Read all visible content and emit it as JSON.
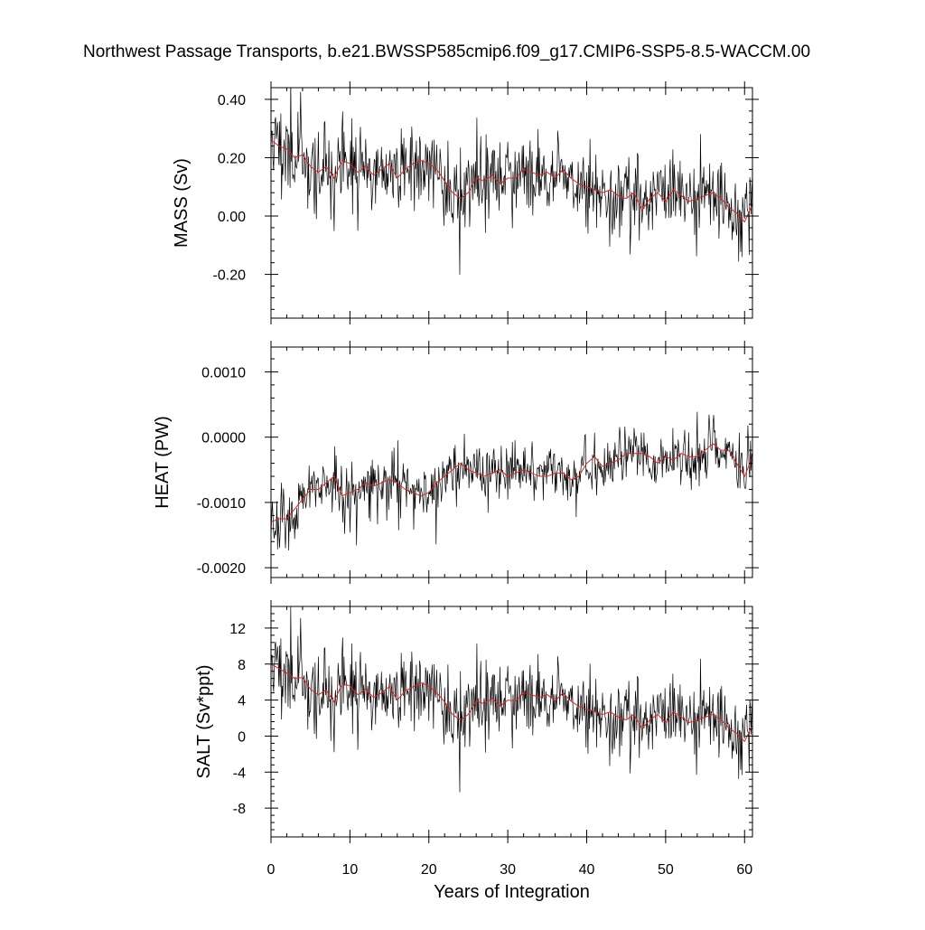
{
  "figure": {
    "title": "Northwest Passage Transports, b.e21.BWSSP585cmip6.f09_g17.CMIP6-SSP5-8.5-WACCM.00",
    "xlabel": "Years of Integration",
    "colors": {
      "monthly": "#000000",
      "annual": "#dd2222",
      "frame": "#000000"
    }
  },
  "chart_data": [
    {
      "type": "line",
      "panel": "mass",
      "ylabel": "MASS (Sv)",
      "xlim": [
        0,
        61
      ],
      "ylim": [
        -0.35,
        0.44
      ],
      "xticks": [
        0,
        10,
        20,
        30,
        40,
        50,
        60
      ],
      "yticks": [
        -0.2,
        0.0,
        0.2,
        0.4
      ],
      "ytick_labels": [
        "-0.20",
        "0.00",
        "0.20",
        "0.40"
      ],
      "grid": false,
      "series": [
        {
          "name": "",
          "role": "annual",
          "color": "#dd2222",
          "x": [
            0,
            1,
            2,
            3,
            4,
            5,
            6,
            7,
            8,
            9,
            10,
            11,
            12,
            13,
            14,
            15,
            16,
            17,
            18,
            19,
            20,
            21,
            22,
            23,
            24,
            25,
            26,
            27,
            28,
            29,
            30,
            31,
            32,
            33,
            34,
            35,
            36,
            37,
            38,
            39,
            40,
            41,
            42,
            43,
            44,
            45,
            46,
            47,
            48,
            49,
            50,
            51,
            52,
            53,
            54,
            55,
            56,
            57,
            58,
            59,
            60,
            61
          ],
          "y": [
            0.26,
            0.24,
            0.23,
            0.2,
            0.21,
            0.17,
            0.15,
            0.17,
            0.13,
            0.19,
            0.18,
            0.15,
            0.17,
            0.14,
            0.16,
            0.18,
            0.13,
            0.16,
            0.18,
            0.19,
            0.18,
            0.16,
            0.12,
            0.08,
            0.06,
            0.08,
            0.13,
            0.12,
            0.14,
            0.11,
            0.13,
            0.13,
            0.16,
            0.15,
            0.14,
            0.15,
            0.13,
            0.16,
            0.13,
            0.11,
            0.1,
            0.09,
            0.08,
            0.09,
            0.07,
            0.06,
            0.08,
            0.02,
            0.06,
            0.08,
            0.05,
            0.09,
            0.07,
            0.05,
            0.06,
            0.07,
            0.08,
            0.06,
            0.03,
            0.01,
            -0.02,
            0.04
          ]
        },
        {
          "name": "",
          "role": "monthly",
          "color": "#000000",
          "samples_per_year": 12,
          "amplitude": 0.095,
          "spike_amplitude": 0.2,
          "seed": 11,
          "y": []
        }
      ]
    },
    {
      "type": "line",
      "panel": "heat",
      "ylabel": "HEAT (PW)",
      "xlim": [
        0,
        61
      ],
      "ylim": [
        -0.00215,
        0.00138
      ],
      "xticks": [
        0,
        10,
        20,
        30,
        40,
        50,
        60
      ],
      "yticks": [
        -0.002,
        -0.001,
        0.0,
        0.001
      ],
      "ytick_labels": [
        "-0.0020",
        "-0.0010",
        "0.0000",
        "0.0010"
      ],
      "grid": false,
      "series": [
        {
          "name": "",
          "role": "annual",
          "color": "#dd2222",
          "x": [
            0,
            1,
            2,
            3,
            4,
            5,
            6,
            7,
            8,
            9,
            10,
            11,
            12,
            13,
            14,
            15,
            16,
            17,
            18,
            19,
            20,
            21,
            22,
            23,
            24,
            25,
            26,
            27,
            28,
            29,
            30,
            31,
            32,
            33,
            34,
            35,
            36,
            37,
            38,
            39,
            40,
            41,
            42,
            43,
            44,
            45,
            46,
            47,
            48,
            49,
            50,
            51,
            52,
            53,
            54,
            55,
            56,
            57,
            58,
            59,
            60,
            61
          ],
          "y": [
            -0.0013,
            -0.00125,
            -0.00125,
            -0.0011,
            -0.00095,
            -0.0008,
            -0.0008,
            -0.0007,
            -0.0006,
            -0.0009,
            -0.00085,
            -0.0008,
            -0.0007,
            -0.00075,
            -0.0007,
            -0.00065,
            -0.0007,
            -0.0008,
            -0.00085,
            -0.0009,
            -0.00085,
            -0.0007,
            -0.0006,
            -0.0005,
            -0.0004,
            -0.0005,
            -0.00055,
            -0.0006,
            -0.00055,
            -0.0005,
            -0.0006,
            -0.00055,
            -0.0005,
            -0.00055,
            -0.0006,
            -0.0006,
            -0.00055,
            -0.00055,
            -0.00065,
            -0.0006,
            -0.0004,
            -0.0003,
            -0.00045,
            -0.0004,
            -0.00035,
            -0.00025,
            -0.00025,
            -0.00025,
            -0.0003,
            -0.0004,
            -0.0003,
            -0.00035,
            -0.00025,
            -0.0003,
            -0.0003,
            -0.0002,
            -0.0001,
            -0.0002,
            -0.0002,
            -0.0004,
            -0.0006,
            -0.0003
          ]
        },
        {
          "name": "",
          "role": "monthly",
          "color": "#000000",
          "samples_per_year": 12,
          "amplitude": 0.00028,
          "spike_amplitude": 0.0007,
          "seed": 23,
          "y": []
        }
      ]
    },
    {
      "type": "line",
      "panel": "salt",
      "ylabel": "SALT (Sv*ppt)",
      "xlim": [
        0,
        61
      ],
      "ylim": [
        -11.2,
        14.4
      ],
      "xticks": [
        0,
        10,
        20,
        30,
        40,
        50,
        60
      ],
      "yticks": [
        -8,
        -4,
        0,
        4,
        8,
        12
      ],
      "ytick_labels": [
        "-8",
        "-4",
        "0",
        "4",
        "8",
        "12"
      ],
      "grid": false,
      "series": [
        {
          "name": "",
          "role": "annual",
          "color": "#dd2222",
          "x": [
            0,
            1,
            2,
            3,
            4,
            5,
            6,
            7,
            8,
            9,
            10,
            11,
            12,
            13,
            14,
            15,
            16,
            17,
            18,
            19,
            20,
            21,
            22,
            23,
            24,
            25,
            26,
            27,
            28,
            29,
            30,
            31,
            32,
            33,
            34,
            35,
            36,
            37,
            38,
            39,
            40,
            41,
            42,
            43,
            44,
            45,
            46,
            47,
            48,
            49,
            50,
            51,
            52,
            53,
            54,
            55,
            56,
            57,
            58,
            59,
            60,
            61
          ],
          "y": [
            8.0,
            7.5,
            7.0,
            6.4,
            6.5,
            5.2,
            4.6,
            5.1,
            3.8,
            5.8,
            5.6,
            4.6,
            5.2,
            4.3,
            4.8,
            5.5,
            4.0,
            5.0,
            5.5,
            5.9,
            5.6,
            4.8,
            3.8,
            2.4,
            1.8,
            2.4,
            3.9,
            3.6,
            4.2,
            3.3,
            4.0,
            3.9,
            4.8,
            4.6,
            4.3,
            4.6,
            3.9,
            4.8,
            3.9,
            3.3,
            3.0,
            2.7,
            2.4,
            2.7,
            2.1,
            1.8,
            2.4,
            0.8,
            1.8,
            2.4,
            1.5,
            2.7,
            2.1,
            1.5,
            1.8,
            2.1,
            2.4,
            1.8,
            0.9,
            0.3,
            -0.6,
            1.2
          ]
        },
        {
          "name": "",
          "role": "monthly",
          "color": "#000000",
          "samples_per_year": 12,
          "amplitude": 2.9,
          "spike_amplitude": 6.2,
          "seed": 11,
          "y": []
        }
      ]
    }
  ]
}
